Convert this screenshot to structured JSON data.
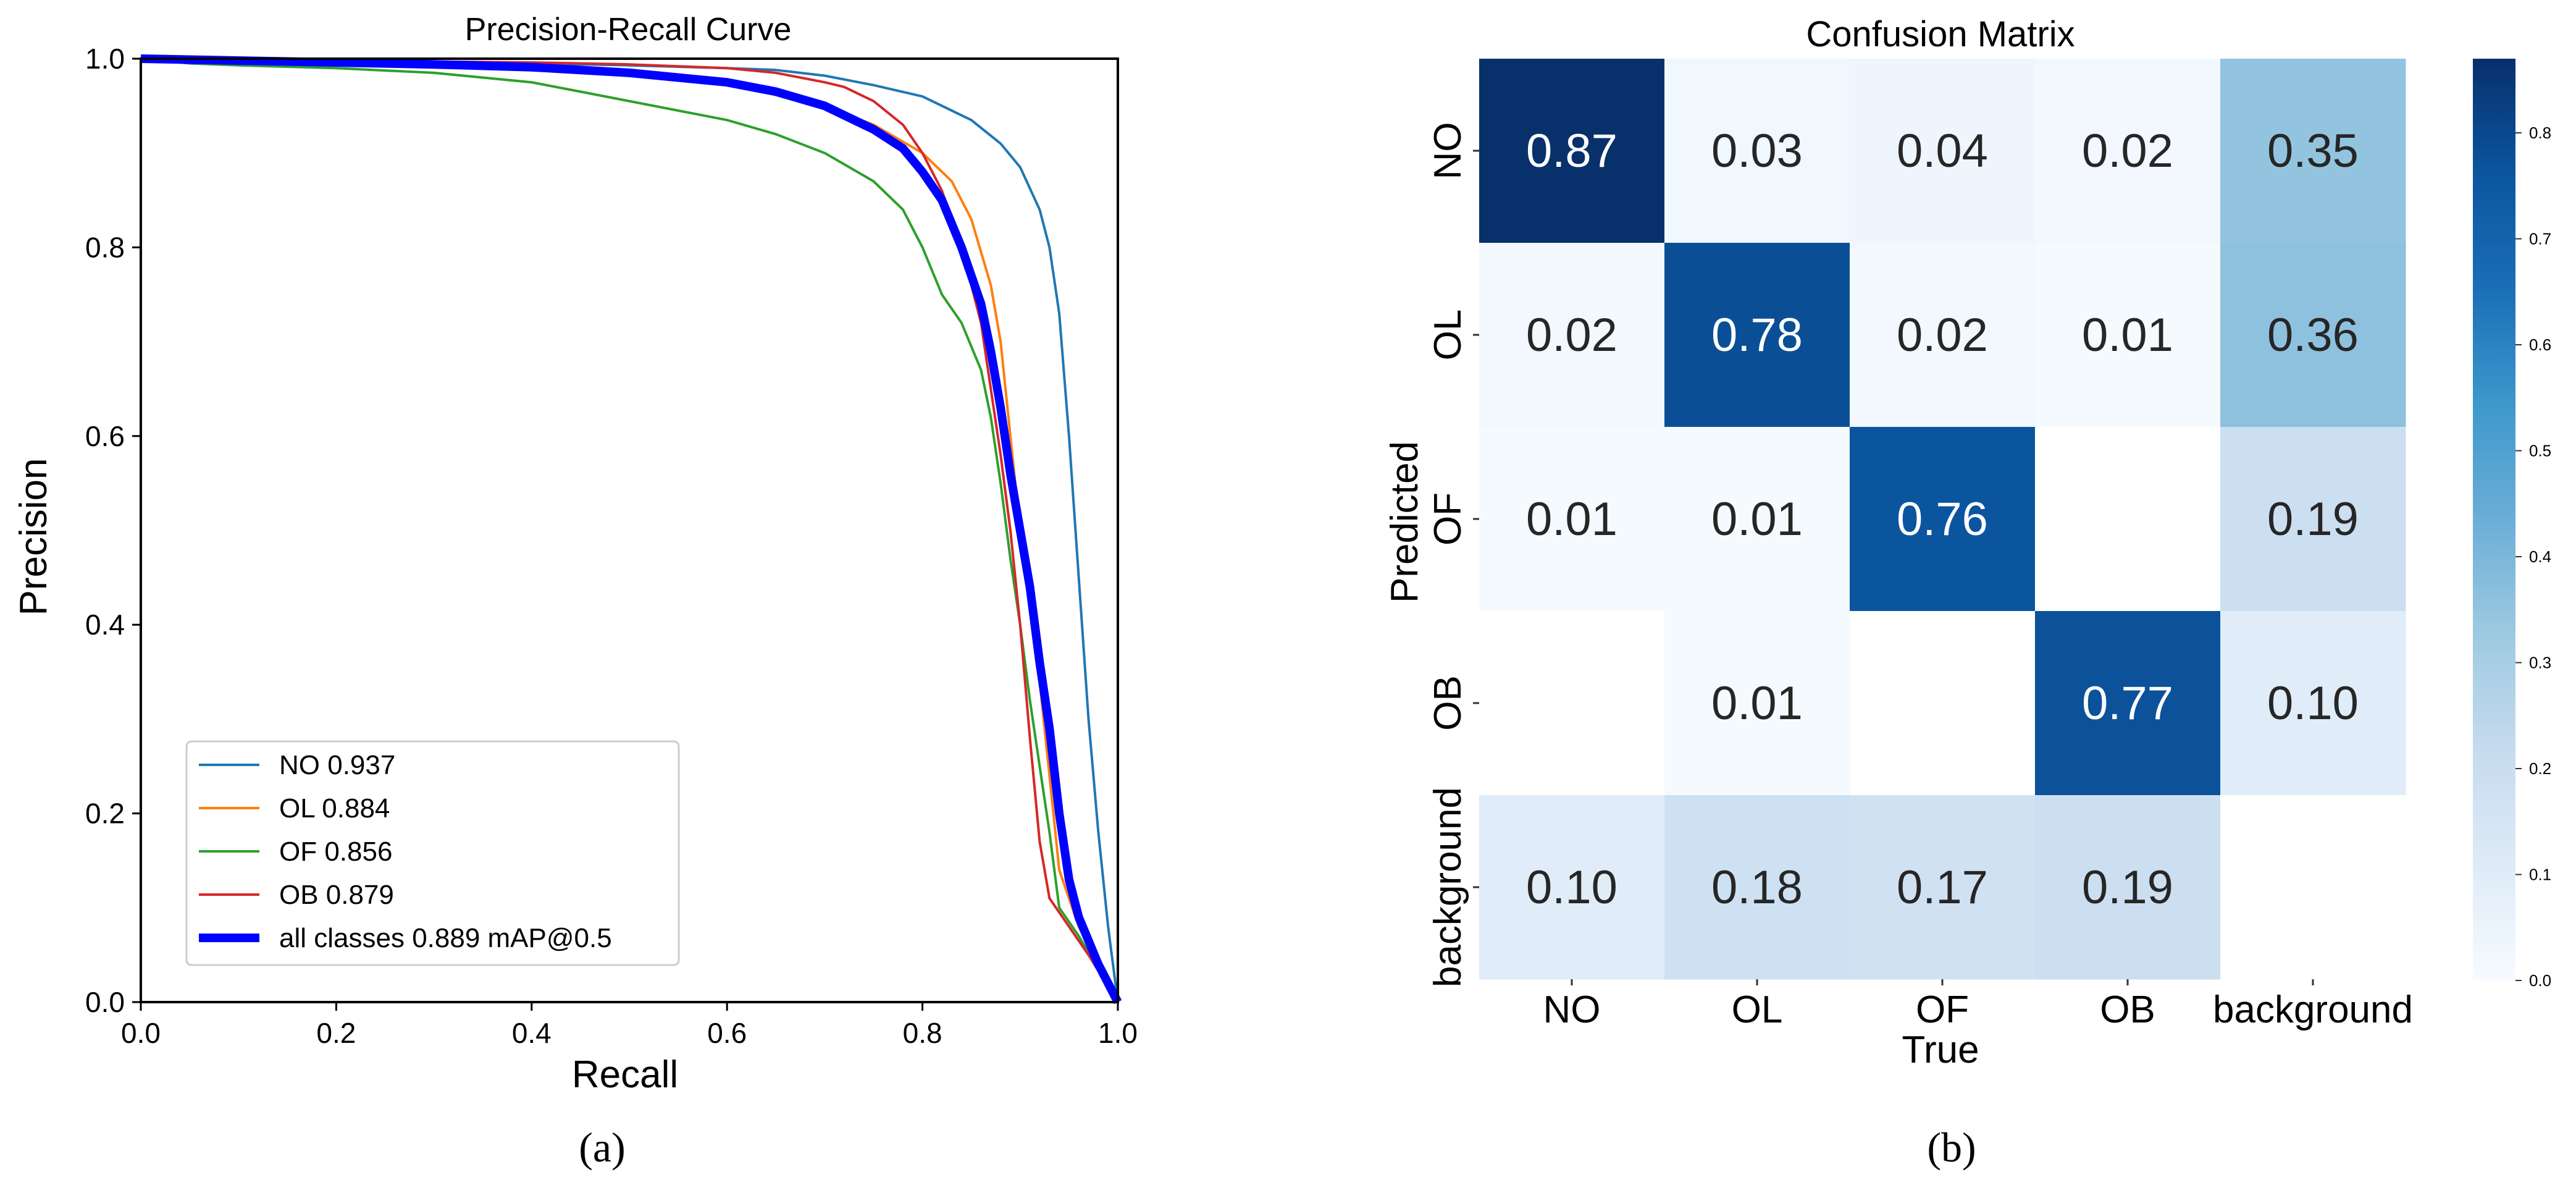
{
  "panel_labels": [
    "(a)",
    "(b)"
  ],
  "chart_data": [
    {
      "type": "line",
      "title": "Precision-Recall Curve",
      "xlabel": "Recall",
      "ylabel": "Precision",
      "xlim": [
        0,
        1
      ],
      "ylim": [
        0,
        1
      ],
      "xticks": [
        "0.0",
        "0.2",
        "0.4",
        "0.6",
        "0.8",
        "1.0"
      ],
      "yticks": [
        "0.0",
        "0.2",
        "0.4",
        "0.6",
        "0.8",
        "1.0"
      ],
      "legend_position": "lower-left",
      "series": [
        {
          "name": "NO 0.937",
          "color": "#1f77b4",
          "width": "thin",
          "x": [
            0,
            0.1,
            0.2,
            0.3,
            0.4,
            0.5,
            0.6,
            0.65,
            0.7,
            0.75,
            0.8,
            0.85,
            0.88,
            0.9,
            0.92,
            0.93,
            0.94,
            0.95,
            0.96,
            0.97,
            0.98,
            0.99,
            1.0
          ],
          "y": [
            1.0,
            0.998,
            0.997,
            0.996,
            0.995,
            0.993,
            0.99,
            0.988,
            0.982,
            0.972,
            0.96,
            0.935,
            0.91,
            0.885,
            0.84,
            0.8,
            0.73,
            0.6,
            0.45,
            0.3,
            0.18,
            0.08,
            0.0
          ]
        },
        {
          "name": "OL 0.884",
          "color": "#ff7f0e",
          "width": "thin",
          "x": [
            0,
            0.1,
            0.2,
            0.3,
            0.4,
            0.5,
            0.6,
            0.65,
            0.7,
            0.75,
            0.8,
            0.83,
            0.85,
            0.87,
            0.88,
            0.89,
            0.9,
            0.91,
            0.92,
            0.93,
            0.94,
            0.96,
            0.98,
            1.0
          ],
          "y": [
            1.0,
            0.997,
            0.995,
            0.993,
            0.99,
            0.985,
            0.975,
            0.965,
            0.95,
            0.93,
            0.9,
            0.87,
            0.83,
            0.76,
            0.7,
            0.6,
            0.5,
            0.42,
            0.34,
            0.24,
            0.14,
            0.08,
            0.04,
            0.0
          ]
        },
        {
          "name": "OF 0.856",
          "color": "#2ca02c",
          "width": "thin",
          "x": [
            0,
            0.05,
            0.1,
            0.2,
            0.3,
            0.4,
            0.45,
            0.5,
            0.55,
            0.6,
            0.65,
            0.7,
            0.75,
            0.78,
            0.8,
            0.82,
            0.84,
            0.86,
            0.87,
            0.88,
            0.89,
            0.9,
            0.91,
            0.92,
            0.93,
            0.94,
            0.96,
            0.98,
            1.0
          ],
          "y": [
            1.0,
            0.995,
            0.993,
            0.99,
            0.985,
            0.975,
            0.965,
            0.955,
            0.945,
            0.935,
            0.92,
            0.9,
            0.87,
            0.84,
            0.8,
            0.75,
            0.72,
            0.67,
            0.62,
            0.55,
            0.47,
            0.4,
            0.32,
            0.25,
            0.18,
            0.1,
            0.07,
            0.035,
            0.0
          ]
        },
        {
          "name": "OB 0.879",
          "color": "#d62728",
          "width": "thin",
          "x": [
            0,
            0.1,
            0.2,
            0.3,
            0.4,
            0.5,
            0.6,
            0.65,
            0.7,
            0.72,
            0.75,
            0.78,
            0.8,
            0.82,
            0.84,
            0.86,
            0.87,
            0.88,
            0.89,
            0.9,
            0.91,
            0.92,
            0.93,
            0.95,
            0.97,
            1.0
          ],
          "y": [
            1.0,
            0.999,
            0.998,
            0.997,
            0.996,
            0.994,
            0.99,
            0.985,
            0.975,
            0.97,
            0.955,
            0.93,
            0.9,
            0.86,
            0.8,
            0.72,
            0.65,
            0.58,
            0.5,
            0.4,
            0.28,
            0.17,
            0.11,
            0.08,
            0.05,
            0.0
          ]
        },
        {
          "name": "all classes 0.889 mAP@0.5",
          "color": "#0000ff",
          "width": "thick",
          "x": [
            0,
            0.1,
            0.2,
            0.3,
            0.4,
            0.5,
            0.6,
            0.65,
            0.7,
            0.75,
            0.78,
            0.8,
            0.82,
            0.84,
            0.86,
            0.87,
            0.88,
            0.89,
            0.9,
            0.91,
            0.92,
            0.93,
            0.94,
            0.95,
            0.96,
            0.98,
            1.0
          ],
          "y": [
            1.0,
            0.998,
            0.996,
            0.994,
            0.991,
            0.985,
            0.975,
            0.965,
            0.95,
            0.925,
            0.905,
            0.88,
            0.85,
            0.8,
            0.74,
            0.69,
            0.63,
            0.56,
            0.5,
            0.44,
            0.36,
            0.29,
            0.2,
            0.13,
            0.09,
            0.04,
            0.0
          ]
        }
      ]
    },
    {
      "type": "heatmap",
      "title": "Confusion Matrix",
      "xlabel": "True",
      "ylabel": "Predicted",
      "x_categories": [
        "NO",
        "OL",
        "OF",
        "OB",
        "background"
      ],
      "y_categories": [
        "NO",
        "OL",
        "OF",
        "OB",
        "background"
      ],
      "values": [
        [
          0.87,
          0.03,
          0.04,
          0.02,
          0.35
        ],
        [
          0.02,
          0.78,
          0.02,
          0.01,
          0.36
        ],
        [
          0.01,
          0.01,
          0.76,
          null,
          0.19
        ],
        [
          null,
          0.01,
          null,
          0.77,
          0.1
        ],
        [
          0.1,
          0.18,
          0.17,
          0.19,
          null
        ]
      ],
      "colorbar_range": [
        0,
        0.87
      ],
      "colorbar_ticks": [
        "0.0",
        "0.1",
        "0.2",
        "0.3",
        "0.4",
        "0.5",
        "0.6",
        "0.7",
        "0.8"
      ],
      "colormap": "Blues"
    }
  ]
}
